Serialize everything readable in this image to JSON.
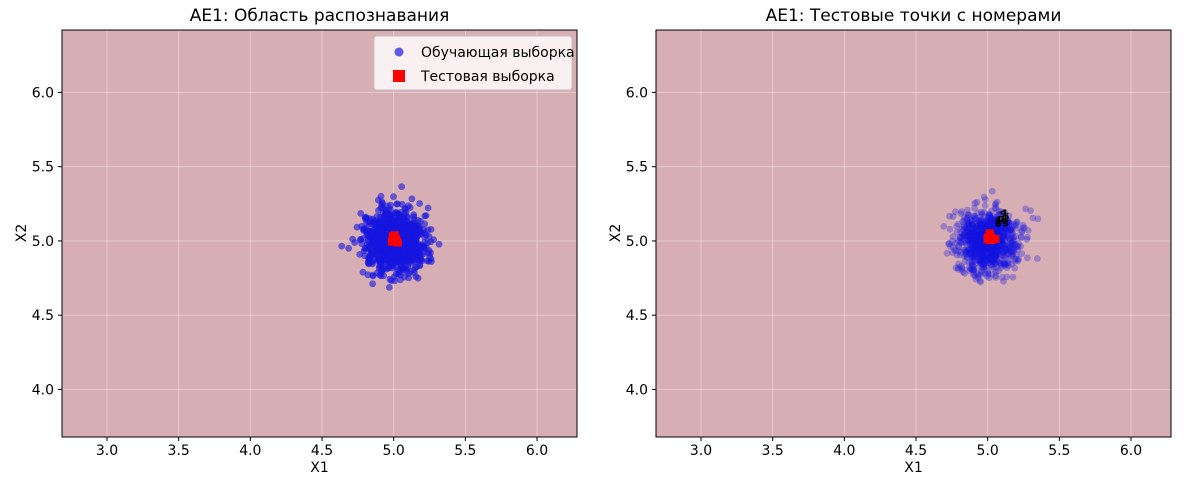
{
  "chart_data": [
    {
      "type": "scatter",
      "title": "AE1: Область распознавания",
      "xlabel": "X1",
      "ylabel": "X2",
      "xlim": [
        2.686,
        6.279
      ],
      "ylim": [
        3.68,
        6.42
      ],
      "xticks": [
        "3.0",
        "3.5",
        "4.0",
        "4.5",
        "5.0",
        "5.5",
        "6.0"
      ],
      "yticks": [
        "4.0",
        "4.5",
        "5.0",
        "5.5",
        "6.0"
      ],
      "grid": true,
      "region_color": "#d7aeb4",
      "grid_color": "rgba(255,255,255,0.38)",
      "legend": {
        "visible": true,
        "position": "upper right",
        "items": [
          {
            "label": "Обучающая выборка",
            "marker": "circle",
            "color": "#2a2ae0"
          },
          {
            "label": "Тестовая выборка",
            "marker": "square",
            "color": "#ff0000"
          }
        ]
      },
      "series": [
        {
          "name": "Обучающая выборка",
          "marker": "circle",
          "color": "#1515e0",
          "opacity": 0.6,
          "radius": 3.4,
          "cluster": {
            "center": [
              5.0,
              5.0
            ],
            "std": [
              0.105,
              0.105
            ],
            "n": 1000,
            "seed": 20240
          }
        },
        {
          "name": "Тестовая выборка",
          "marker": "square",
          "color": "#ff0000",
          "opacity": 1,
          "size": 8,
          "cluster": {
            "center": [
              5.0,
              5.01
            ],
            "std": [
              0.016,
              0.016
            ],
            "n": 10,
            "seed": 77
          }
        }
      ]
    },
    {
      "type": "scatter",
      "title": "AE1: Тестовые точки с номерами",
      "xlabel": "X1",
      "ylabel": "X2",
      "xlim": [
        2.686,
        6.279
      ],
      "ylim": [
        3.68,
        6.42
      ],
      "xticks": [
        "3.0",
        "3.5",
        "4.0",
        "4.5",
        "5.0",
        "5.5",
        "6.0"
      ],
      "yticks": [
        "4.0",
        "4.5",
        "5.0",
        "5.5",
        "6.0"
      ],
      "grid": true,
      "region_color": "#d7aeb4",
      "grid_color": "rgba(255,255,255,0.38)",
      "legend": {
        "visible": false,
        "items": []
      },
      "series": [
        {
          "name": "Обучающая выборка",
          "marker": "circle",
          "color": "#1515e0",
          "opacity": 0.3,
          "radius": 3.4,
          "cluster": {
            "center": [
              5.0,
              5.0
            ],
            "std": [
              0.1,
              0.1
            ],
            "n": 1000,
            "seed": 5551
          }
        },
        {
          "name": "Тестовая выборка",
          "marker": "square",
          "color": "#ff0000",
          "opacity": 1,
          "size": 8,
          "cluster": {
            "center": [
              5.02,
              5.02
            ],
            "std": [
              0.016,
              0.016
            ],
            "n": 10,
            "seed": 88
          }
        }
      ],
      "annotations": {
        "labels": [
          "1",
          "2",
          "3",
          "4",
          "5",
          "6",
          "7",
          "8",
          "9",
          "10"
        ],
        "center": [
          5.11,
          5.12
        ],
        "jitter": [
          0.025,
          0.02
        ],
        "color": "#000000",
        "font_size": 9,
        "seed": 909
      }
    }
  ]
}
